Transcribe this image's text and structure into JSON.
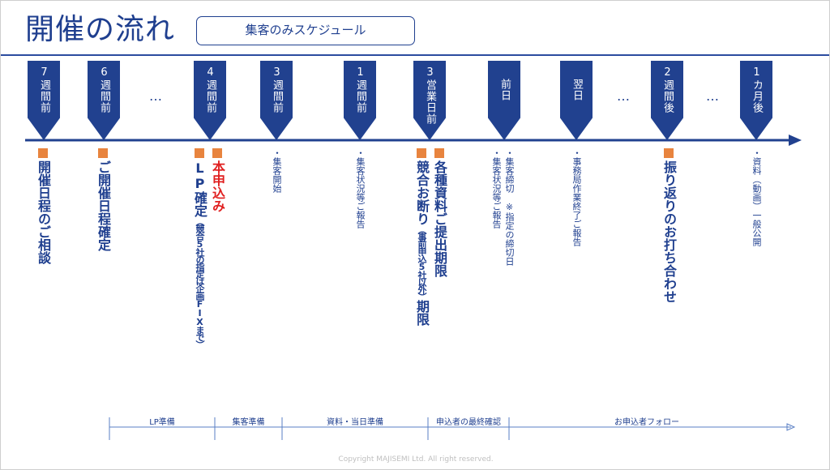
{
  "title": "開催の流れ",
  "subtitle": "集客のみスケジュール",
  "colors": {
    "primary": "#21418f",
    "accent_square": "#e8843e",
    "highlight": "#e02020"
  },
  "milestones": [
    "7週間前",
    "6週間前",
    "4週間前",
    "3週間前",
    "1週間前",
    "3営業日前",
    "前日",
    "翌日",
    "2週間後",
    "1カ月後"
  ],
  "ellipsis": "…",
  "notes": {
    "m7w": "開催日程のご相談",
    "m6w": "ご開催日程確定",
    "m4w_a": "本申込み",
    "m4w_b_main": "LP確定",
    "m4w_b_sub": "（競合5社の指定は企画FIXまで）",
    "m3w": "・集客開始",
    "m1w": "・集客状況等ご報告",
    "m3d_a": "各種資料ご提出期限",
    "m3d_b_main": "競合お断り",
    "m3d_b_sub": "（事前申込5社以外）",
    "m3d_b_tail": "期限",
    "prev_a": "・集客締切　※指定の締切日",
    "prev_b": "・集客状況等ご報告",
    "next": "・事務局作業終了ご報告",
    "m2wa": "振り返りのお打ち合わせ",
    "m1m": "・資料（動画）一般公開"
  },
  "phases": [
    "LP準備",
    "集客準備",
    "資料・当日準備",
    "申込者の最終確認",
    "お申込者フォロー"
  ],
  "copyright": "Copyright MAJISEMI Ltd. All right reserved."
}
